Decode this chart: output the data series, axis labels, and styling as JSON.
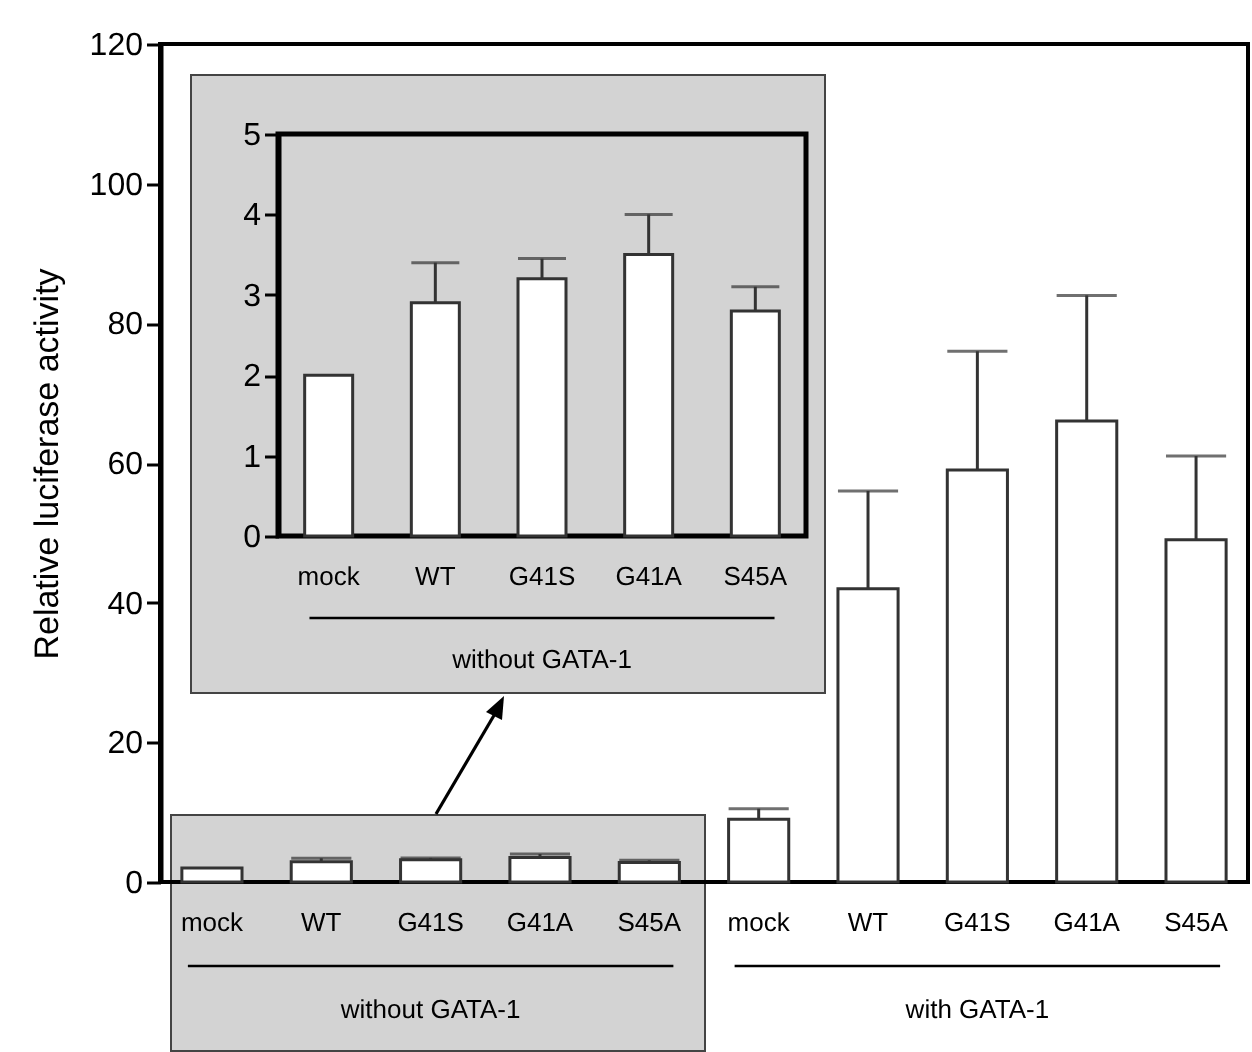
{
  "chart_data": [
    {
      "type": "bar",
      "ylabel": "Relative luciferase activity",
      "categories": [
        "mock",
        "WT",
        "G41S",
        "G41A",
        "S45A",
        "mock",
        "WT",
        "G41S",
        "G41A",
        "S45A"
      ],
      "series": [
        {
          "color": "#ffffff",
          "values": [
            2.0,
            2.9,
            3.2,
            3.5,
            2.8,
            9,
            42,
            59,
            66,
            49
          ],
          "errors": [
            null,
            0.5,
            0.25,
            0.5,
            0.3,
            1.5,
            14,
            17,
            18,
            12
          ]
        }
      ],
      "ylim": [
        0,
        120
      ],
      "yticks": [
        0,
        20,
        40,
        60,
        80,
        100,
        120
      ],
      "annotations": [
        "without GATA-1",
        "with GATA-1"
      ]
    },
    {
      "type": "bar",
      "categories": [
        "mock",
        "WT",
        "G41S",
        "G41A",
        "S45A"
      ],
      "series": [
        {
          "color": "#ffffff",
          "values": [
            2.0,
            2.9,
            3.2,
            3.5,
            2.8
          ],
          "errors": [
            null,
            0.5,
            0.25,
            0.5,
            0.3
          ]
        }
      ],
      "ylim": [
        0,
        5
      ],
      "yticks": [
        0,
        1,
        2,
        3,
        4,
        5
      ],
      "annotations": [
        "without GATA-1"
      ]
    }
  ]
}
